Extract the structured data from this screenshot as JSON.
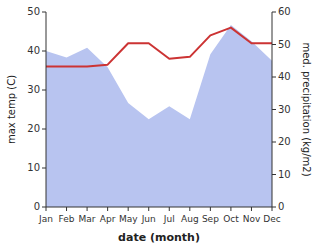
{
  "chart_data": {
    "type": "line",
    "categories": [
      "Jan",
      "Feb",
      "Mar",
      "Apr",
      "May",
      "Jun",
      "Jul",
      "Aug",
      "Sep",
      "Oct",
      "Nov",
      "Dec"
    ],
    "x_label": "date (month)",
    "y_label": "max temp (C)",
    "y2_label": "med. precipitation (kg/m2)",
    "series": [
      {
        "type": "area",
        "axis": "y2",
        "color": "#b8c4f0",
        "values": [
          48,
          46,
          49,
          43,
          32,
          27,
          31,
          27,
          47,
          56,
          51,
          45
        ]
      },
      {
        "type": "line",
        "color": "#cc3333",
        "values": [
          36,
          36,
          36,
          36.5,
          42,
          42,
          38,
          38.5,
          44,
          46,
          42,
          42
        ]
      }
    ],
    "ylim": [
      0,
      50
    ],
    "yticks": [
      0,
      10,
      20,
      30,
      40,
      50
    ],
    "y2lim": [
      0,
      60
    ],
    "y2ticks": [
      0,
      10,
      20,
      30,
      40,
      50,
      60
    ],
    "grid": false
  }
}
